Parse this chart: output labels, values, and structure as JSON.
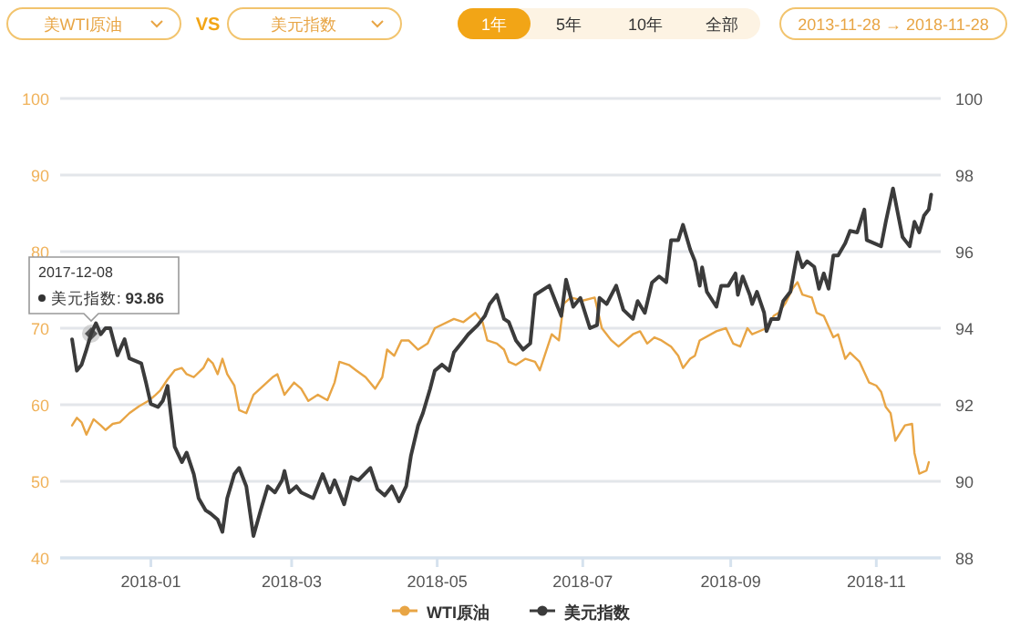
{
  "chart_data": {
    "type": "line",
    "annotations": [
      "美WTI原油",
      "VS",
      "美元指数",
      "1年",
      "5年",
      "10年",
      "全部",
      "2013-11-28 → 2018-11-28",
      "2017-12-08\n美元指数: 93.86"
    ],
    "xlim": [
      "2017-11-24",
      "2018-11-28"
    ],
    "xticks": [
      "2018-01",
      "2018-03",
      "2018-05",
      "2018-07",
      "2018-09",
      "2018-11"
    ],
    "ylim": [
      40,
      100
    ],
    "yticks": [
      40,
      50,
      60,
      70,
      80,
      90,
      100
    ],
    "y2lim": [
      88,
      100
    ],
    "y2ticks": [
      88,
      90,
      92,
      94,
      96,
      98,
      100
    ],
    "grid": "y",
    "legend": "bottom",
    "series": [
      {
        "name": "WTI原油",
        "color": "#e8a545",
        "x": [
          "2017-11-29",
          "2017-12-01",
          "2017-12-03",
          "2017-12-05",
          "2017-12-08",
          "2017-12-11",
          "2017-12-13",
          "2017-12-16",
          "2017-12-19",
          "2017-12-23",
          "2017-12-27",
          "2017-12-31",
          "2018-01-03",
          "2018-01-05",
          "2018-01-08",
          "2018-01-11",
          "2018-01-14",
          "2018-01-16",
          "2018-01-19",
          "2018-01-23",
          "2018-01-25",
          "2018-01-27",
          "2018-01-29",
          "2018-01-31",
          "2018-02-02",
          "2018-02-05",
          "2018-02-07",
          "2018-02-10",
          "2018-02-13",
          "2018-02-21",
          "2018-02-23",
          "2018-02-26",
          "2018-03-02",
          "2018-03-05",
          "2018-03-08",
          "2018-03-12",
          "2018-03-16",
          "2018-03-19",
          "2018-03-21",
          "2018-03-25",
          "2018-03-28",
          "2018-04-01",
          "2018-04-05",
          "2018-04-08",
          "2018-04-10",
          "2018-04-13",
          "2018-04-16",
          "2018-04-19",
          "2018-04-23",
          "2018-04-27",
          "2018-04-30",
          "2018-05-08",
          "2018-05-12",
          "2018-05-17",
          "2018-05-20",
          "2018-05-22",
          "2018-05-26",
          "2018-05-29",
          "2018-05-31",
          "2018-06-03",
          "2018-06-07",
          "2018-06-11",
          "2018-06-13",
          "2018-06-18",
          "2018-06-21",
          "2018-06-23",
          "2018-06-26",
          "2018-07-01",
          "2018-07-06",
          "2018-07-09",
          "2018-07-13",
          "2018-07-16",
          "2018-07-22",
          "2018-07-25",
          "2018-07-28",
          "2018-07-31",
          "2018-08-03",
          "2018-08-07",
          "2018-08-10",
          "2018-08-12",
          "2018-08-15",
          "2018-08-17",
          "2018-08-19",
          "2018-08-26",
          "2018-08-30",
          "2018-09-02",
          "2018-09-05",
          "2018-09-08",
          "2018-09-10",
          "2018-09-16",
          "2018-09-19",
          "2018-09-21",
          "2018-09-24",
          "2018-09-27",
          "2018-09-29",
          "2018-10-01",
          "2018-10-05",
          "2018-10-07",
          "2018-10-10",
          "2018-10-14",
          "2018-10-16",
          "2018-10-19",
          "2018-10-21",
          "2018-10-25",
          "2018-10-29",
          "2018-11-01",
          "2018-11-03",
          "2018-11-05",
          "2018-11-07",
          "2018-11-09",
          "2018-11-13",
          "2018-11-16",
          "2018-11-17",
          "2018-11-19",
          "2018-11-22",
          "2018-11-23"
        ],
        "values": [
          57.3,
          58.3,
          57.7,
          56.1,
          58.1,
          57.3,
          56.7,
          57.5,
          57.7,
          58.9,
          59.8,
          60.5,
          61.3,
          61.9,
          63.3,
          64.5,
          64.8,
          64.0,
          63.6,
          64.8,
          66.0,
          65.4,
          64.0,
          66.0,
          64.0,
          62.5,
          59.3,
          58.9,
          61.3,
          63.6,
          64.0,
          61.3,
          62.9,
          62.1,
          60.5,
          61.3,
          60.6,
          62.9,
          65.6,
          65.2,
          64.5,
          63.6,
          62.1,
          63.6,
          67.2,
          66.4,
          68.4,
          68.4,
          67.2,
          68.0,
          70.0,
          71.2,
          70.8,
          72.0,
          70.8,
          68.4,
          68.0,
          67.2,
          65.6,
          65.2,
          66.0,
          65.6,
          64.5,
          69.2,
          68.4,
          73.2,
          74.0,
          73.6,
          74.0,
          70.0,
          68.4,
          67.6,
          69.2,
          69.6,
          68.0,
          68.8,
          68.4,
          67.6,
          66.4,
          64.8,
          66.0,
          66.4,
          68.4,
          69.6,
          70.0,
          68.0,
          67.6,
          70.0,
          69.2,
          70.0,
          71.6,
          72.0,
          73.3,
          75.2,
          76.0,
          74.4,
          74.0,
          72.0,
          71.6,
          68.8,
          69.2,
          66.0,
          66.8,
          65.6,
          62.9,
          62.5,
          61.7,
          59.7,
          58.9,
          55.3,
          57.3,
          57.5,
          53.7,
          51.0,
          51.4,
          52.5
        ]
      },
      {
        "name": "美元指数",
        "color": "#3b3b3b",
        "axis": "y2",
        "x": [
          "2017-11-29",
          "2017-12-01",
          "2017-12-03",
          "2017-12-05",
          "2017-12-07",
          "2017-12-09",
          "2017-12-11",
          "2017-12-13",
          "2017-12-15",
          "2017-12-18",
          "2017-12-21",
          "2017-12-23",
          "2017-12-28",
          "2017-12-30",
          "2018-01-01",
          "2018-01-04",
          "2018-01-06",
          "2018-01-08",
          "2018-01-11",
          "2018-01-14",
          "2018-01-16",
          "2018-01-19",
          "2018-01-21",
          "2018-01-24",
          "2018-01-26",
          "2018-01-29",
          "2018-01-31",
          "2018-02-02",
          "2018-02-05",
          "2018-02-07",
          "2018-02-10",
          "2018-02-13",
          "2018-02-16",
          "2018-02-19",
          "2018-02-22",
          "2018-02-25",
          "2018-02-26",
          "2018-02-28",
          "2018-03-03",
          "2018-03-05",
          "2018-03-10",
          "2018-03-14",
          "2018-03-17",
          "2018-03-19",
          "2018-03-23",
          "2018-03-26",
          "2018-03-29",
          "2018-04-03",
          "2018-04-06",
          "2018-04-09",
          "2018-04-12",
          "2018-04-15",
          "2018-04-18",
          "2018-04-20",
          "2018-04-23",
          "2018-04-25",
          "2018-04-28",
          "2018-04-30",
          "2018-05-03",
          "2018-05-06",
          "2018-05-08",
          "2018-05-12",
          "2018-05-14",
          "2018-05-18",
          "2018-05-21",
          "2018-05-23",
          "2018-05-26",
          "2018-05-29",
          "2018-05-31",
          "2018-06-03",
          "2018-06-06",
          "2018-06-09",
          "2018-06-11",
          "2018-06-17",
          "2018-06-20",
          "2018-06-22",
          "2018-06-24",
          "2018-06-27",
          "2018-06-30",
          "2018-07-04",
          "2018-07-07",
          "2018-07-08",
          "2018-07-11",
          "2018-07-15",
          "2018-07-18",
          "2018-07-22",
          "2018-07-24",
          "2018-07-27",
          "2018-07-30",
          "2018-08-02",
          "2018-08-05",
          "2018-08-07",
          "2018-08-10",
          "2018-08-12",
          "2018-08-15",
          "2018-08-17",
          "2018-08-19",
          "2018-08-20",
          "2018-08-22",
          "2018-08-26",
          "2018-08-28",
          "2018-08-31",
          "2018-09-03",
          "2018-09-04",
          "2018-09-06",
          "2018-09-09",
          "2018-09-10",
          "2018-09-12",
          "2018-09-15",
          "2018-09-16",
          "2018-09-18",
          "2018-09-21",
          "2018-09-23",
          "2018-09-26",
          "2018-09-29",
          "2018-10-01",
          "2018-10-03",
          "2018-10-06",
          "2018-10-08",
          "2018-10-10",
          "2018-10-12",
          "2018-10-14",
          "2018-10-16",
          "2018-10-19",
          "2018-10-21",
          "2018-10-24",
          "2018-10-27",
          "2018-10-28",
          "2018-11-03",
          "2018-11-05",
          "2018-11-08",
          "2018-11-10",
          "2018-11-12",
          "2018-11-15",
          "2018-11-17",
          "2018-11-19",
          "2018-11-21",
          "2018-11-23",
          "2018-11-24"
        ],
        "values": [
          93.71,
          92.89,
          93.05,
          93.44,
          93.86,
          94.13,
          93.84,
          94.0,
          94.0,
          93.29,
          93.71,
          93.21,
          93.08,
          92.57,
          92.02,
          91.94,
          92.1,
          92.49,
          90.9,
          90.5,
          90.75,
          90.19,
          89.56,
          89.24,
          89.16,
          89.0,
          88.68,
          89.56,
          90.19,
          90.35,
          89.87,
          88.57,
          89.24,
          89.87,
          89.71,
          90.03,
          90.27,
          89.71,
          89.87,
          89.71,
          89.56,
          90.19,
          89.71,
          90.03,
          89.4,
          90.11,
          90.03,
          90.35,
          89.79,
          89.63,
          89.87,
          89.48,
          89.87,
          90.67,
          91.46,
          91.78,
          92.41,
          92.89,
          93.05,
          92.89,
          93.37,
          93.68,
          93.84,
          94.08,
          94.32,
          94.63,
          94.87,
          94.24,
          94.16,
          93.68,
          93.44,
          93.6,
          94.87,
          95.11,
          94.63,
          94.32,
          95.27,
          94.56,
          94.79,
          94.0,
          94.08,
          94.79,
          94.63,
          95.11,
          94.48,
          94.24,
          94.71,
          94.4,
          95.19,
          95.35,
          95.2,
          96.3,
          96.3,
          96.7,
          96.06,
          95.75,
          95.11,
          95.59,
          94.95,
          94.56,
          95.11,
          95.11,
          95.43,
          94.87,
          95.35,
          94.87,
          94.63,
          94.95,
          94.4,
          93.92,
          94.24,
          94.24,
          94.71,
          94.95,
          95.98,
          95.59,
          95.75,
          95.6,
          95.03,
          95.43,
          95.03,
          95.9,
          95.9,
          96.22,
          96.54,
          96.5,
          97.1,
          96.3,
          96.14,
          96.78,
          97.65,
          97.01,
          96.38,
          96.14,
          96.78,
          96.5,
          96.94,
          97.1,
          97.49
        ]
      }
    ]
  }
}
